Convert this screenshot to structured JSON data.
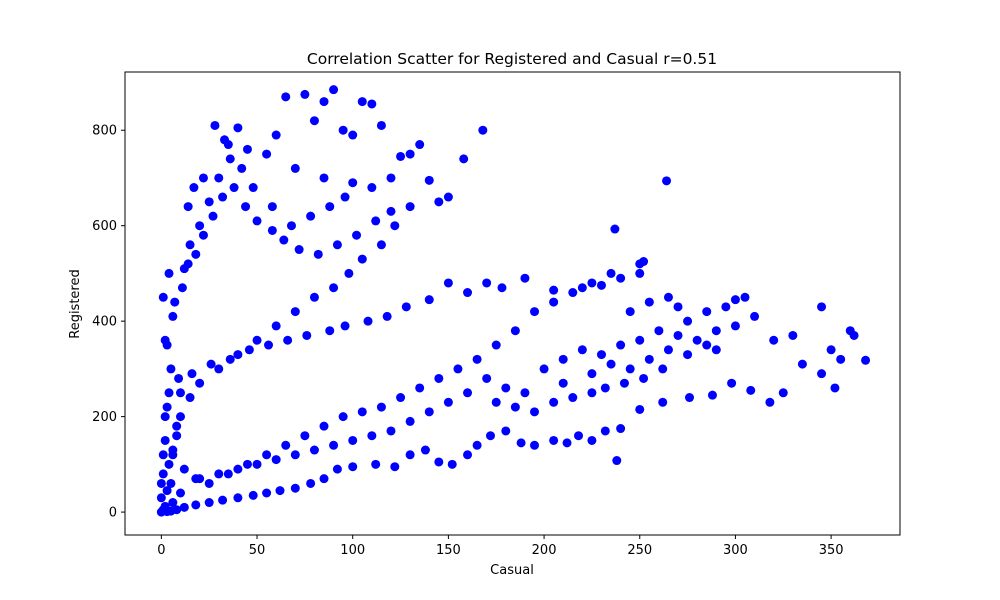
{
  "chart_data": {
    "type": "scatter",
    "title": "Correlation Scatter for Registered and Casual r=0.51",
    "xlabel": "Casual",
    "ylabel": "Registered",
    "xlim": [
      -19,
      386
    ],
    "ylim": [
      -48,
      922
    ],
    "xticks": [
      0,
      50,
      100,
      150,
      200,
      250,
      300,
      350
    ],
    "yticks": [
      0,
      200,
      400,
      600,
      800
    ],
    "grid": false,
    "legend": "none",
    "marker_color": "#0000ff",
    "series": [
      {
        "points": [
          [
            0,
            0
          ],
          [
            1,
            5
          ],
          [
            2,
            12
          ],
          [
            0,
            30
          ],
          [
            3,
            45
          ],
          [
            5,
            60
          ],
          [
            1,
            80
          ],
          [
            4,
            100
          ],
          [
            6,
            120
          ],
          [
            2,
            150
          ],
          [
            8,
            180
          ],
          [
            3,
            220
          ],
          [
            10,
            250
          ],
          [
            5,
            300
          ],
          [
            2,
            360
          ],
          [
            6,
            410
          ],
          [
            1,
            450
          ],
          [
            4,
            500
          ],
          [
            12,
            510
          ],
          [
            15,
            560
          ],
          [
            20,
            600
          ],
          [
            25,
            650
          ],
          [
            30,
            700
          ],
          [
            33,
            780
          ],
          [
            40,
            805
          ],
          [
            28,
            810
          ],
          [
            35,
            770
          ],
          [
            45,
            760
          ],
          [
            55,
            750
          ],
          [
            60,
            790
          ],
          [
            65,
            870
          ],
          [
            75,
            875
          ],
          [
            85,
            860
          ],
          [
            90,
            885
          ],
          [
            105,
            860
          ],
          [
            110,
            855
          ],
          [
            100,
            790
          ],
          [
            95,
            800
          ],
          [
            115,
            810
          ],
          [
            80,
            820
          ],
          [
            70,
            720
          ],
          [
            85,
            700
          ],
          [
            100,
            690
          ],
          [
            110,
            680
          ],
          [
            120,
            700
          ],
          [
            125,
            745
          ],
          [
            130,
            750
          ],
          [
            135,
            770
          ],
          [
            140,
            695
          ],
          [
            150,
            660
          ],
          [
            158,
            740
          ],
          [
            168,
            800
          ],
          [
            145,
            650
          ],
          [
            130,
            640
          ],
          [
            122,
            600
          ],
          [
            115,
            560
          ],
          [
            105,
            530
          ],
          [
            98,
            500
          ],
          [
            90,
            470
          ],
          [
            80,
            450
          ],
          [
            70,
            420
          ],
          [
            60,
            390
          ],
          [
            50,
            360
          ],
          [
            40,
            330
          ],
          [
            30,
            300
          ],
          [
            20,
            270
          ],
          [
            15,
            240
          ],
          [
            10,
            200
          ],
          [
            8,
            160
          ],
          [
            6,
            130
          ],
          [
            12,
            90
          ],
          [
            18,
            70
          ],
          [
            25,
            60
          ],
          [
            35,
            80
          ],
          [
            45,
            100
          ],
          [
            55,
            120
          ],
          [
            65,
            140
          ],
          [
            75,
            160
          ],
          [
            85,
            180
          ],
          [
            95,
            200
          ],
          [
            105,
            210
          ],
          [
            115,
            220
          ],
          [
            125,
            240
          ],
          [
            135,
            260
          ],
          [
            145,
            280
          ],
          [
            155,
            300
          ],
          [
            165,
            320
          ],
          [
            175,
            350
          ],
          [
            185,
            380
          ],
          [
            195,
            420
          ],
          [
            205,
            440
          ],
          [
            215,
            460
          ],
          [
            225,
            480
          ],
          [
            235,
            500
          ],
          [
            240,
            490
          ],
          [
            250,
            520
          ],
          [
            245,
            420
          ],
          [
            255,
            440
          ],
          [
            265,
            450
          ],
          [
            270,
            430
          ],
          [
            275,
            400
          ],
          [
            285,
            420
          ],
          [
            295,
            430
          ],
          [
            300,
            445
          ],
          [
            305,
            450
          ],
          [
            310,
            410
          ],
          [
            320,
            360
          ],
          [
            330,
            370
          ],
          [
            345,
            430
          ],
          [
            350,
            340
          ],
          [
            355,
            320
          ],
          [
            360,
            380
          ],
          [
            362,
            370
          ],
          [
            368,
            318
          ],
          [
            352,
            260
          ],
          [
            345,
            290
          ],
          [
            335,
            310
          ],
          [
            325,
            250
          ],
          [
            318,
            230
          ],
          [
            308,
            255
          ],
          [
            298,
            270
          ],
          [
            288,
            245
          ],
          [
            276,
            240
          ],
          [
            262,
            230
          ],
          [
            250,
            215
          ],
          [
            240,
            175
          ],
          [
            232,
            170
          ],
          [
            225,
            150
          ],
          [
            218,
            160
          ],
          [
            212,
            145
          ],
          [
            205,
            150
          ],
          [
            195,
            140
          ],
          [
            188,
            145
          ],
          [
            180,
            170
          ],
          [
            172,
            160
          ],
          [
            165,
            140
          ],
          [
            160,
            120
          ],
          [
            152,
            100
          ],
          [
            145,
            105
          ],
          [
            138,
            130
          ],
          [
            130,
            120
          ],
          [
            122,
            95
          ],
          [
            112,
            100
          ],
          [
            100,
            95
          ],
          [
            92,
            90
          ],
          [
            85,
            70
          ],
          [
            78,
            60
          ],
          [
            70,
            50
          ],
          [
            62,
            45
          ],
          [
            55,
            40
          ],
          [
            48,
            35
          ],
          [
            40,
            30
          ],
          [
            32,
            25
          ],
          [
            25,
            20
          ],
          [
            18,
            15
          ],
          [
            12,
            10
          ],
          [
            8,
            5
          ],
          [
            5,
            2
          ],
          [
            3,
            1
          ],
          [
            238,
            108
          ],
          [
            237,
            593
          ],
          [
            264,
            694
          ],
          [
            252,
            525
          ],
          [
            250,
            500
          ],
          [
            230,
            475
          ],
          [
            220,
            470
          ],
          [
            205,
            465
          ],
          [
            190,
            490
          ],
          [
            178,
            470
          ],
          [
            170,
            480
          ],
          [
            160,
            460
          ],
          [
            150,
            480
          ],
          [
            140,
            445
          ],
          [
            128,
            430
          ],
          [
            118,
            410
          ],
          [
            108,
            400
          ],
          [
            96,
            390
          ],
          [
            88,
            380
          ],
          [
            76,
            370
          ],
          [
            66,
            360
          ],
          [
            56,
            350
          ],
          [
            46,
            340
          ],
          [
            36,
            320
          ],
          [
            26,
            310
          ],
          [
            16,
            290
          ],
          [
            9,
            280
          ],
          [
            4,
            250
          ],
          [
            2,
            200
          ],
          [
            1,
            120
          ],
          [
            0,
            60
          ],
          [
            3,
            350
          ],
          [
            7,
            440
          ],
          [
            11,
            470
          ],
          [
            14,
            520
          ],
          [
            18,
            540
          ],
          [
            22,
            580
          ],
          [
            27,
            620
          ],
          [
            32,
            660
          ],
          [
            38,
            680
          ],
          [
            44,
            640
          ],
          [
            50,
            610
          ],
          [
            58,
            590
          ],
          [
            64,
            570
          ],
          [
            72,
            550
          ],
          [
            82,
            540
          ],
          [
            92,
            560
          ],
          [
            102,
            580
          ],
          [
            112,
            610
          ],
          [
            120,
            630
          ],
          [
            96,
            660
          ],
          [
            88,
            640
          ],
          [
            78,
            620
          ],
          [
            68,
            600
          ],
          [
            58,
            640
          ],
          [
            48,
            680
          ],
          [
            42,
            720
          ],
          [
            36,
            740
          ],
          [
            22,
            700
          ],
          [
            17,
            680
          ],
          [
            14,
            640
          ],
          [
            200,
            300
          ],
          [
            210,
            320
          ],
          [
            220,
            340
          ],
          [
            230,
            330
          ],
          [
            240,
            350
          ],
          [
            250,
            360
          ],
          [
            260,
            380
          ],
          [
            270,
            370
          ],
          [
            280,
            360
          ],
          [
            290,
            380
          ],
          [
            300,
            390
          ],
          [
            180,
            260
          ],
          [
            170,
            280
          ],
          [
            160,
            250
          ],
          [
            150,
            230
          ],
          [
            140,
            210
          ],
          [
            130,
            190
          ],
          [
            120,
            170
          ],
          [
            110,
            160
          ],
          [
            100,
            150
          ],
          [
            90,
            140
          ],
          [
            80,
            130
          ],
          [
            70,
            120
          ],
          [
            60,
            110
          ],
          [
            50,
            100
          ],
          [
            40,
            90
          ],
          [
            30,
            80
          ],
          [
            20,
            70
          ],
          [
            10,
            40
          ],
          [
            6,
            20
          ],
          [
            190,
            250
          ],
          [
            210,
            270
          ],
          [
            225,
            290
          ],
          [
            235,
            310
          ],
          [
            245,
            300
          ],
          [
            255,
            320
          ],
          [
            265,
            340
          ],
          [
            275,
            330
          ],
          [
            285,
            350
          ],
          [
            290,
            340
          ],
          [
            175,
            230
          ],
          [
            185,
            220
          ],
          [
            195,
            210
          ],
          [
            205,
            230
          ],
          [
            215,
            240
          ],
          [
            225,
            250
          ],
          [
            232,
            260
          ],
          [
            242,
            270
          ],
          [
            252,
            280
          ],
          [
            262,
            300
          ]
        ]
      }
    ]
  }
}
